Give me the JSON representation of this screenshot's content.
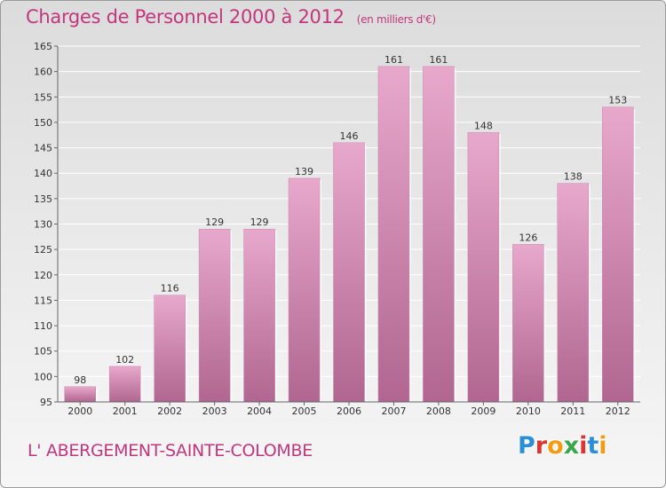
{
  "title": "Charges de Personnel 2000 à 2012",
  "subtitle": "(en milliers d'€)",
  "commune": "L' ABERGEMENT-SAINTE-COLOMBE",
  "logo": {
    "letters": [
      "P",
      "r",
      "o",
      "x",
      "i",
      "t",
      "i"
    ],
    "colors": [
      "#2a8fd6",
      "#e0332f",
      "#f39c12",
      "#3aa64a",
      "#e0332f",
      "#2a8fd6",
      "#f39c12"
    ]
  },
  "colors": {
    "bar": "#d88cb4",
    "text": "#c2367e"
  },
  "chart_data": {
    "type": "bar",
    "categories": [
      "2000",
      "2001",
      "2002",
      "2003",
      "2004",
      "2005",
      "2006",
      "2007",
      "2008",
      "2009",
      "2010",
      "2011",
      "2012"
    ],
    "values": [
      98,
      102,
      116,
      129,
      129,
      139,
      146,
      161,
      161,
      148,
      126,
      138,
      153
    ],
    "title": "Charges de Personnel 2000 à 2012",
    "subtitle": "(en milliers d'€)",
    "ylim": [
      95,
      165
    ],
    "yticks": [
      95,
      100,
      105,
      110,
      115,
      120,
      125,
      130,
      135,
      140,
      145,
      150,
      155,
      160,
      165
    ],
    "grid": true
  }
}
